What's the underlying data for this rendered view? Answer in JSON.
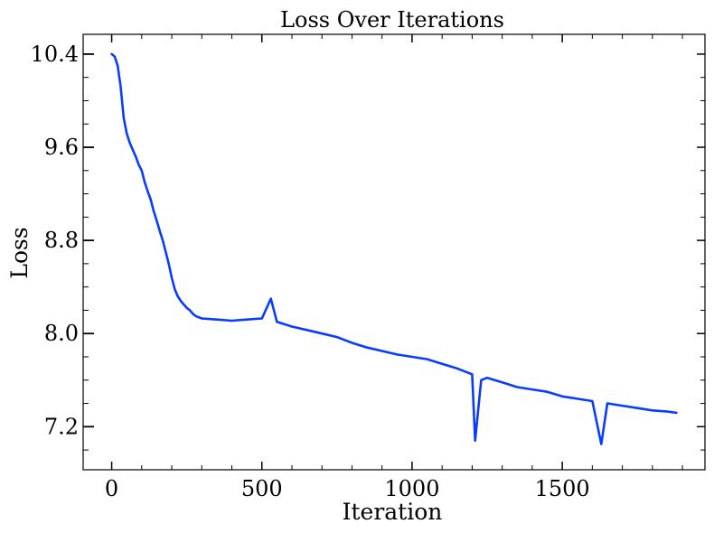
{
  "chart_data": {
    "type": "line",
    "title": "Loss Over Iterations",
    "xlabel": "Iteration",
    "ylabel": "Loss",
    "xlim": [
      -95,
      1975
    ],
    "ylim": [
      6.83,
      10.57
    ],
    "x_ticks": [
      0,
      500,
      1000,
      1500
    ],
    "x_tick_labels": [
      "0",
      "500",
      "1000",
      "1500"
    ],
    "x_minor_ticks": [
      100,
      200,
      300,
      400,
      600,
      700,
      800,
      900,
      1100,
      1200,
      1300,
      1400,
      1600,
      1700,
      1800,
      1900
    ],
    "y_ticks": [
      7.2,
      8.0,
      8.8,
      9.6,
      10.4
    ],
    "y_tick_labels": [
      "7.2",
      "8.0",
      "8.8",
      "9.6",
      "10.4"
    ],
    "y_minor_ticks": [
      7.0,
      7.4,
      7.6,
      7.8,
      8.2,
      8.4,
      8.6,
      9.0,
      9.2,
      9.4,
      9.8,
      10.0,
      10.2
    ],
    "grid": false,
    "legend": "none",
    "color": "#0a3cff",
    "series": [
      {
        "x": [
          0,
          10,
          20,
          30,
          40,
          50,
          60,
          70,
          80,
          90,
          100,
          110,
          120,
          130,
          140,
          150,
          160,
          170,
          180,
          190,
          200,
          210,
          220,
          230,
          240,
          250,
          260,
          270,
          280,
          300,
          350,
          400,
          450,
          500,
          530,
          550,
          600,
          650,
          700,
          750,
          800,
          850,
          900,
          950,
          1000,
          1050,
          1100,
          1150,
          1200,
          1210,
          1230,
          1250,
          1300,
          1350,
          1400,
          1450,
          1500,
          1550,
          1600,
          1630,
          1650,
          1700,
          1750,
          1800,
          1850,
          1880
        ],
        "y": [
          10.4,
          10.38,
          10.3,
          10.12,
          9.85,
          9.72,
          9.64,
          9.58,
          9.52,
          9.45,
          9.4,
          9.3,
          9.22,
          9.15,
          9.05,
          8.97,
          8.88,
          8.8,
          8.7,
          8.6,
          8.48,
          8.38,
          8.32,
          8.28,
          8.25,
          8.22,
          8.2,
          8.17,
          8.15,
          8.13,
          8.12,
          8.11,
          8.12,
          8.13,
          8.3,
          8.1,
          8.06,
          8.03,
          8.0,
          7.97,
          7.92,
          7.88,
          7.85,
          7.82,
          7.8,
          7.78,
          7.74,
          7.7,
          7.65,
          7.08,
          7.6,
          7.62,
          7.58,
          7.54,
          7.52,
          7.5,
          7.46,
          7.44,
          7.42,
          7.05,
          7.4,
          7.38,
          7.36,
          7.34,
          7.33,
          7.32
        ]
      }
    ]
  }
}
